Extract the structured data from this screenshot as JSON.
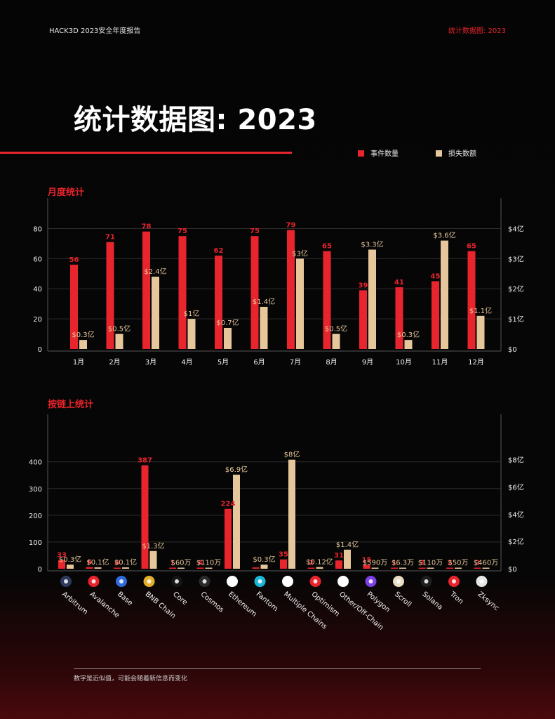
{
  "header": {
    "left": "HACK3D 2023安全年度报告",
    "right": "统计数据图: 2023"
  },
  "title": "统计数据图: 2023",
  "legend": [
    {
      "label": "事件数量",
      "color": "#e8242c"
    },
    {
      "label": "损失数额",
      "color": "#e6c79b"
    }
  ],
  "sections": {
    "monthly": "月度统计",
    "chain": "按链上统计"
  },
  "footer": "数字是近似值，可能会随着新信息而变化",
  "colors": {
    "count": "#e8242c",
    "loss": "#e6c79b",
    "accent": "#e8242c"
  },
  "chart_data": [
    {
      "type": "bar",
      "title": "月度统计",
      "categories": [
        "1月",
        "2月",
        "3月",
        "4月",
        "5月",
        "6月",
        "7月",
        "8月",
        "9月",
        "10月",
        "11月",
        "12月"
      ],
      "series": [
        {
          "name": "事件数量",
          "axis": "left",
          "values": [
            56,
            71,
            78,
            75,
            62,
            75,
            79,
            65,
            39,
            41,
            45,
            65
          ],
          "labels": [
            "56",
            "71",
            "78",
            "75",
            "62",
            "75",
            "79",
            "65",
            "39",
            "41",
            "45",
            "65"
          ]
        },
        {
          "name": "损失数额",
          "axis": "right",
          "values": [
            0.3,
            0.5,
            2.4,
            1,
            0.7,
            1.4,
            3,
            0.5,
            3.3,
            0.3,
            3.6,
            1.1
          ],
          "labels": [
            "$0.3亿",
            "$0.5亿",
            "$2.4亿",
            "$1亿",
            "$0.7亿",
            "$1.4亿",
            "$3亿",
            "$0.5亿",
            "$3.3亿",
            "$0.3亿",
            "$3.6亿",
            "$1.1亿"
          ]
        }
      ],
      "left_axis": {
        "range": [
          0,
          90
        ],
        "ticks": [
          0,
          20,
          40,
          60,
          80
        ],
        "tick_labels": [
          "0",
          "20",
          "40",
          "60",
          "80"
        ]
      },
      "right_axis": {
        "unit": "亿美元",
        "range": [
          0,
          4.5
        ],
        "ticks": [
          0,
          1,
          2,
          3,
          4
        ],
        "tick_labels": [
          "$0",
          "$1亿",
          "$2亿",
          "$3亿",
          "$4亿"
        ]
      },
      "grid": true
    },
    {
      "type": "bar",
      "title": "按链上统计",
      "categories": [
        "Arbitrum",
        "Avalanche",
        "Base",
        "BNB Chain",
        "Core",
        "Cosmos",
        "Ethereum",
        "Fantom",
        "Multiple Chains",
        "Optimism",
        "Other/Off-Chain",
        "Polygon",
        "Scroll",
        "Solana",
        "Tron",
        "Zksync"
      ],
      "category_icons": [
        "arbitrum-icon",
        "avalanche-icon",
        "base-icon",
        "bnb-chain-icon",
        "core-icon",
        "cosmos-icon",
        "ethereum-icon",
        "fantom-icon",
        "multiple-chains-icon",
        "optimism-icon",
        "other-off-chain-icon",
        "polygon-icon",
        "scroll-icon",
        "solana-icon",
        "tron-icon",
        "zksync-icon"
      ],
      "series": [
        {
          "name": "事件数量",
          "axis": "left",
          "values": [
            33,
            6,
            4,
            387,
            1,
            4,
            224,
            5,
            35,
            2,
            31,
            15,
            1,
            3,
            2,
            2
          ],
          "labels": [
            "33",
            "6",
            "4",
            "387",
            "1",
            "4",
            "224",
            "",
            "35",
            "2",
            "31",
            "15",
            "1",
            "3",
            "2",
            "2"
          ]
        },
        {
          "name": "损失数额",
          "axis": "right",
          "values": [
            0.3,
            0.1,
            0.1,
            1.3,
            0.006,
            0.011,
            6.9,
            0.3,
            8,
            0.12,
            1.4,
            0.059,
            0.00063,
            0.011,
            0.005,
            0.046
          ],
          "labels": [
            "$0.3亿",
            "$0.1亿",
            "$0.1亿",
            "$1.3亿",
            "$60万",
            "$110万",
            "$6.9亿",
            "$0.3亿",
            "$8亿",
            "$0.12亿",
            "$1.4亿",
            "$590万",
            "$6.3万",
            "$110万",
            "$50万",
            "$460万"
          ]
        }
      ],
      "left_axis": {
        "range": [
          0,
          520
        ],
        "ticks": [
          0,
          100,
          200,
          300,
          400
        ],
        "tick_labels": [
          "0",
          "100",
          "200",
          "300",
          "400"
        ]
      },
      "right_axis": {
        "unit": "亿美元",
        "range": [
          0,
          10.2
        ],
        "ticks": [
          0,
          2,
          4,
          6,
          8
        ],
        "tick_labels": [
          "$0",
          "$2亿",
          "$4亿",
          "$6亿",
          "$8亿"
        ]
      },
      "grid": true
    }
  ]
}
